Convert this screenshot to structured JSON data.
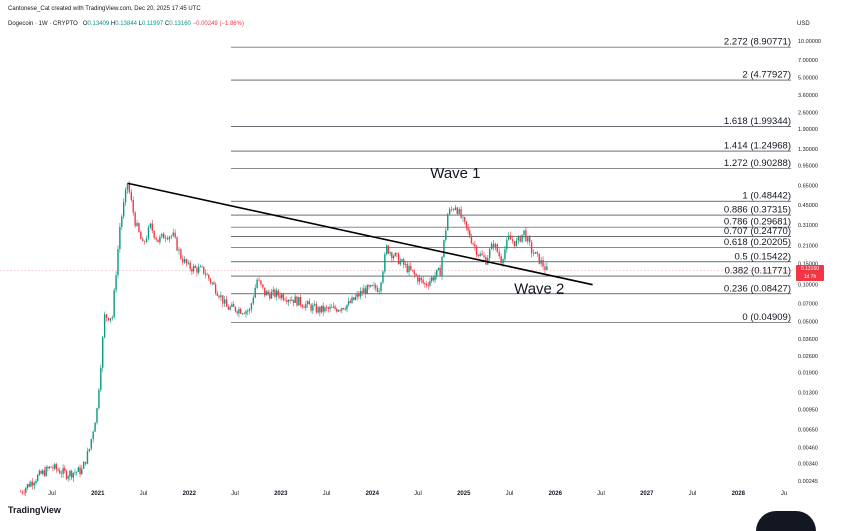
{
  "header": {
    "created_line": "Cantonese_Cat created with TradingView.com, Dec 20, 2025 17:45 UTC",
    "symbol": "Dogecoin · 1W · CRYPTO",
    "ohlc": [
      {
        "k": "O",
        "v": "0.13409"
      },
      {
        "k": "H",
        "v": "0.13844"
      },
      {
        "k": "L",
        "v": "0.11997"
      },
      {
        "k": "C",
        "v": "0.13160"
      }
    ],
    "change": "−0.00249 (−1.86%)"
  },
  "currency": "USD",
  "price_tag": {
    "price": "0.13160",
    "countdown": "1d 7h",
    "color": "#f23645"
  },
  "logo_text": "TradingView",
  "colors": {
    "bull": "#089981",
    "bear": "#f23645",
    "fib": "#131722",
    "trendline": "#000000"
  },
  "chart_data": {
    "type": "candlestick",
    "y_scale": "log",
    "ylim": [
      0.00245,
      10.0
    ],
    "y_ticks": [
      "10.00000",
      "7.00000",
      "5.00000",
      "3.60000",
      "2.60000",
      "1.90000",
      "1.30000",
      "0.95000",
      "0.65000",
      "0.45000",
      "0.31000",
      "0.21000",
      "0.15000",
      "0.10000",
      "0.07000",
      "0.05000",
      "0.03600",
      "0.02600",
      "0.01900",
      "0.01300",
      "0.00950",
      "0.00650",
      "0.00460",
      "0.00340",
      "0.00245"
    ],
    "x_ticks": [
      "Jul",
      "2021",
      "Jul",
      "2022",
      "Jul",
      "2023",
      "Jul",
      "2024",
      "Jul",
      "2025",
      "Jul",
      "2026",
      "Jul",
      "2027",
      "Jul",
      "2028",
      "Ju"
    ],
    "series": [
      {
        "values_approx": [
          [
            "2020-03",
            0.002
          ],
          [
            "2020-05",
            0.0026
          ],
          [
            "2020-07",
            0.0032
          ],
          [
            "2020-09",
            0.0028
          ],
          [
            "2020-11",
            0.003
          ],
          [
            "2020-12",
            0.0045
          ],
          [
            "2021-01",
            0.0095
          ],
          [
            "2021-02",
            0.055
          ],
          [
            "2021-03",
            0.055
          ],
          [
            "2021-04",
            0.3
          ],
          [
            "2021-05",
            0.68
          ],
          [
            "2021-06",
            0.33
          ],
          [
            "2021-07",
            0.21
          ],
          [
            "2021-08",
            0.3
          ],
          [
            "2021-09",
            0.23
          ],
          [
            "2021-10",
            0.26
          ],
          [
            "2021-11",
            0.25
          ],
          [
            "2021-12",
            0.17
          ],
          [
            "2022-01",
            0.14
          ],
          [
            "2022-03",
            0.13
          ],
          [
            "2022-05",
            0.085
          ],
          [
            "2022-06",
            0.065
          ],
          [
            "2022-09",
            0.061
          ],
          [
            "2022-10",
            0.11
          ],
          [
            "2022-11",
            0.085
          ],
          [
            "2023-01",
            0.083
          ],
          [
            "2023-03",
            0.075
          ],
          [
            "2023-06",
            0.062
          ],
          [
            "2023-08",
            0.063
          ],
          [
            "2023-10",
            0.069
          ],
          [
            "2023-12",
            0.09
          ],
          [
            "2024-02",
            0.095
          ],
          [
            "2024-03",
            0.2
          ],
          [
            "2024-05",
            0.15
          ],
          [
            "2024-08",
            0.1
          ],
          [
            "2024-10",
            0.13
          ],
          [
            "2024-11",
            0.38
          ],
          [
            "2024-12",
            0.45
          ],
          [
            "2025-01",
            0.33
          ],
          [
            "2025-03",
            0.18
          ],
          [
            "2025-04",
            0.16
          ],
          [
            "2025-05",
            0.22
          ],
          [
            "2025-06",
            0.16
          ],
          [
            "2025-07",
            0.24
          ],
          [
            "2025-08",
            0.22
          ],
          [
            "2025-09",
            0.27
          ],
          [
            "2025-10",
            0.19
          ],
          [
            "2025-11",
            0.16
          ],
          [
            "2025-12",
            0.1316
          ]
        ]
      }
    ],
    "fib_levels": [
      {
        "ratio": "2.272",
        "price": "8.90771",
        "label": "2.272 (8.90771)"
      },
      {
        "ratio": "2",
        "price": "4.77927",
        "label": "2 (4.77927)"
      },
      {
        "ratio": "1.618",
        "price": "1.99344",
        "label": "1.618 (1.99344)"
      },
      {
        "ratio": "1.414",
        "price": "1.24968",
        "label": "1.414 (1.24968)"
      },
      {
        "ratio": "1.272",
        "price": "0.90288",
        "label": "1.272 (0.90288)"
      },
      {
        "ratio": "1",
        "price": "0.48442",
        "label": "1 (0.48442)"
      },
      {
        "ratio": "0.886",
        "price": "0.37315",
        "label": "0.886 (0.37315)"
      },
      {
        "ratio": "0.786",
        "price": "0.29681",
        "label": "0.786 (0.29681)"
      },
      {
        "ratio": "0.707",
        "price": "0.24770",
        "label": "0.707 (0.24770)"
      },
      {
        "ratio": "0.618",
        "price": "0.20205",
        "label": "0.618 (0.20205)"
      },
      {
        "ratio": "0.5",
        "price": "0.15422",
        "label": "0.5 (0.15422)"
      },
      {
        "ratio": "0.382",
        "price": "0.11771",
        "label": "0.382 (0.11771)"
      },
      {
        "ratio": "0.236",
        "price": "0.08427",
        "label": "0.236 (0.08427)"
      },
      {
        "ratio": "0",
        "price": "0.04909",
        "label": "0 (0.04909)"
      }
    ],
    "annotations": [
      {
        "text": "Wave 1",
        "date": "2024-12",
        "price": 0.75
      },
      {
        "text": "Wave 2",
        "date": "2025-11",
        "price": 0.085
      }
    ],
    "trendline": {
      "from": {
        "date": "2021-05",
        "price": 0.68
      },
      "to": {
        "date": "2026-06",
        "price": 0.1
      }
    },
    "title": "",
    "xlabel": "",
    "ylabel": "",
    "grid": false
  }
}
